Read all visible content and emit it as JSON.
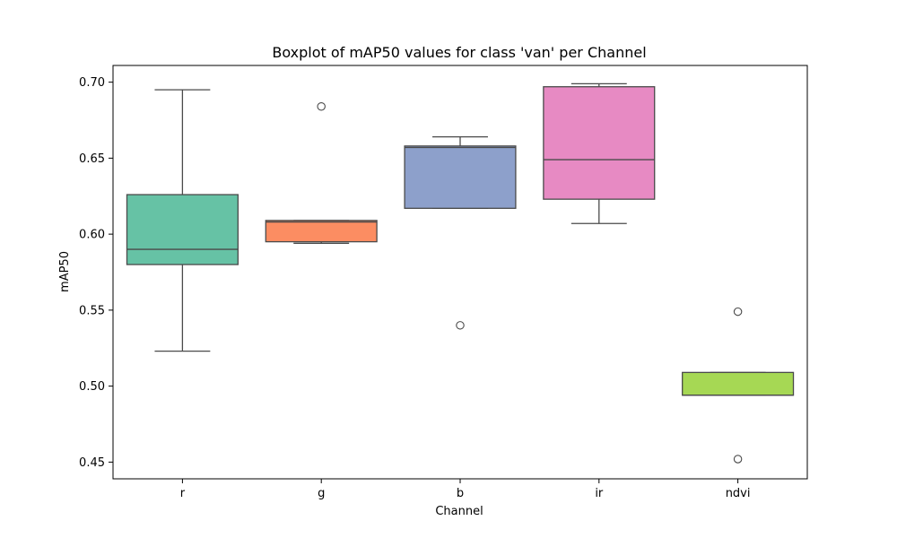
{
  "chart_data": {
    "type": "boxplot",
    "title": "Boxplot of mAP50 values for class 'van' per Channel",
    "xlabel": "Channel",
    "ylabel": "mAP50",
    "ylim": [
      0.439,
      0.711
    ],
    "yticks": [
      0.45,
      0.5,
      0.55,
      0.6,
      0.65,
      0.7
    ],
    "ytick_labels": [
      "0.45",
      "0.50",
      "0.55",
      "0.60",
      "0.65",
      "0.70"
    ],
    "categories": [
      "r",
      "g",
      "b",
      "ir",
      "ndvi"
    ],
    "grid": false,
    "boxes": [
      {
        "category": "r",
        "color": "#66c2a5",
        "whisker_low": 0.523,
        "q1": 0.58,
        "median": 0.59,
        "q3": 0.626,
        "whisker_high": 0.695,
        "outliers": []
      },
      {
        "category": "g",
        "color": "#fc8d62",
        "whisker_low": 0.594,
        "q1": 0.595,
        "median": 0.608,
        "q3": 0.609,
        "whisker_high": 0.609,
        "outliers": [
          0.684
        ]
      },
      {
        "category": "b",
        "color": "#8da0cb",
        "whisker_low": 0.617,
        "q1": 0.617,
        "median": 0.657,
        "q3": 0.658,
        "whisker_high": 0.664,
        "outliers": [
          0.54
        ]
      },
      {
        "category": "ir",
        "color": "#e78ac3",
        "whisker_low": 0.607,
        "q1": 0.623,
        "median": 0.649,
        "q3": 0.697,
        "whisker_high": 0.699,
        "outliers": []
      },
      {
        "category": "ndvi",
        "color": "#a6d854",
        "whisker_low": 0.494,
        "q1": 0.494,
        "median": 0.494,
        "q3": 0.509,
        "whisker_high": 0.509,
        "outliers": [
          0.549,
          0.452
        ]
      }
    ]
  }
}
